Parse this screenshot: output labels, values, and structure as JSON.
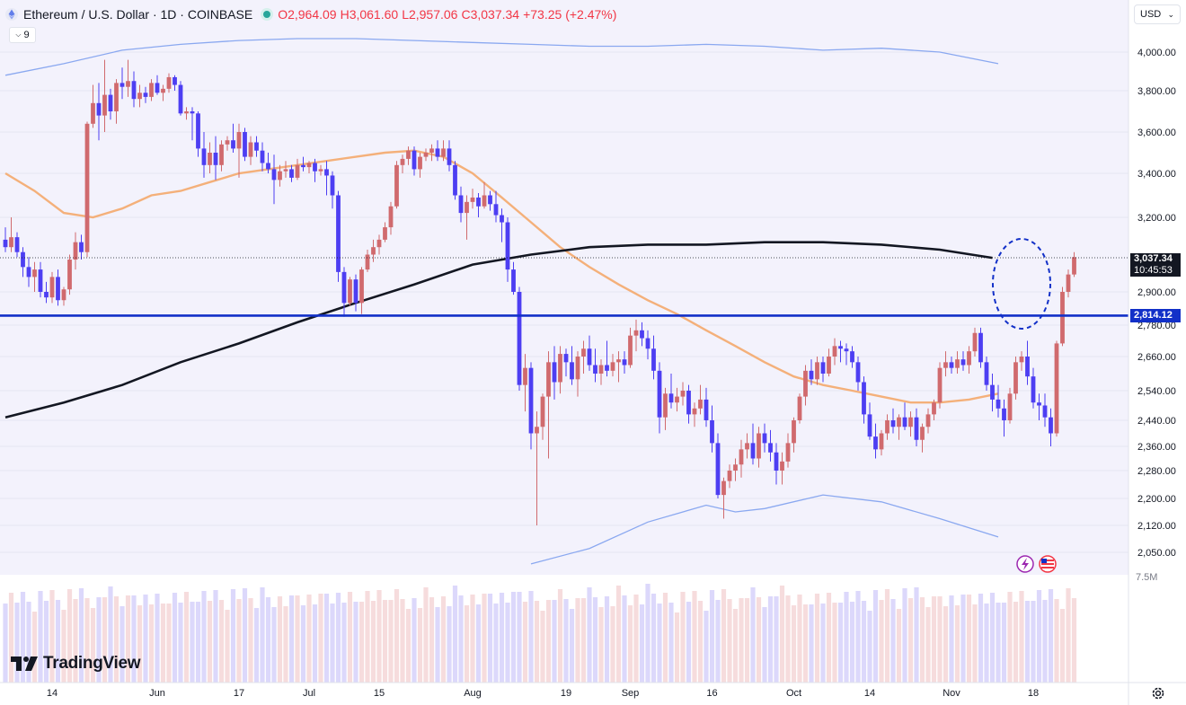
{
  "header": {
    "title": "Ethereum / U.S. Dollar · 1D · COINBASE",
    "open": "O2,964.09",
    "high": "H3,061.60",
    "low": "L2,957.06",
    "close": "C3,037.34",
    "change": "+73.25 (+2.47%)"
  },
  "indicator_count": "9",
  "currency": "USD",
  "brand": "TradingView",
  "price_tag": {
    "value": "3,037.34",
    "countdown": "10:45:53"
  },
  "level_tag": {
    "value": "2,814.12"
  },
  "volume_label": "7.5M",
  "colors": {
    "up": "#d06a6e",
    "down": "#4d3ef2",
    "level": "#1230c8",
    "ma_short": "#f4b07a",
    "ma_long": "#131722",
    "band": "#8aa8f0"
  },
  "chart_data": {
    "type": "candlestick",
    "y_ticks": [
      4000,
      3800,
      3600,
      3400,
      3200,
      2900,
      2780,
      2660,
      2540,
      2440,
      2360,
      2280,
      2200,
      2120,
      2050
    ],
    "y_tick_labels": [
      "4,000.00",
      "3,800.00",
      "3,600.00",
      "3,400.00",
      "3,200.00",
      "2,900.00",
      "2,780.00",
      "2,660.00",
      "2,540.00",
      "2,440.00",
      "2,360.00",
      "2,280.00",
      "2,200.00",
      "2,120.00",
      "2,050.00"
    ],
    "x_tick_labels": [
      {
        "label": "14",
        "index": 8
      },
      {
        "label": "Jun",
        "index": 26
      },
      {
        "label": "17",
        "index": 40
      },
      {
        "label": "Jul",
        "index": 52
      },
      {
        "label": "15",
        "index": 64
      },
      {
        "label": "Aug",
        "index": 80
      },
      {
        "label": "19",
        "index": 96
      },
      {
        "label": "Sep",
        "index": 107
      },
      {
        "label": "16",
        "index": 121
      },
      {
        "label": "Oct",
        "index": 135
      },
      {
        "label": "14",
        "index": 148
      },
      {
        "label": "Nov",
        "index": 162
      },
      {
        "label": "18",
        "index": 176
      }
    ],
    "horizontal_level": 2814.12,
    "last_price": 3037.34,
    "candles": [
      [
        3110,
        3160,
        3060,
        3080
      ],
      [
        3080,
        3200,
        3060,
        3120
      ],
      [
        3120,
        3140,
        3040,
        3060
      ],
      [
        3060,
        3080,
        2960,
        3000
      ],
      [
        3000,
        3040,
        2920,
        2960
      ],
      [
        2960,
        3020,
        2900,
        2990
      ],
      [
        2990,
        3020,
        2880,
        2900
      ],
      [
        2900,
        2940,
        2860,
        2880
      ],
      [
        2880,
        2980,
        2860,
        2960
      ],
      [
        2960,
        2990,
        2850,
        2870
      ],
      [
        2870,
        2920,
        2850,
        2910
      ],
      [
        2910,
        3050,
        2890,
        3030
      ],
      [
        3030,
        3140,
        2990,
        3100
      ],
      [
        3100,
        3130,
        3030,
        3060
      ],
      [
        3060,
        3650,
        3040,
        3640
      ],
      [
        3640,
        3830,
        3620,
        3740
      ],
      [
        3740,
        3840,
        3560,
        3680
      ],
      [
        3680,
        3960,
        3600,
        3780
      ],
      [
        3780,
        3810,
        3660,
        3700
      ],
      [
        3700,
        3860,
        3640,
        3840
      ],
      [
        3840,
        3920,
        3760,
        3820
      ],
      [
        3820,
        3960,
        3770,
        3850
      ],
      [
        3850,
        3900,
        3720,
        3760
      ],
      [
        3760,
        3830,
        3720,
        3790
      ],
      [
        3790,
        3820,
        3740,
        3770
      ],
      [
        3770,
        3860,
        3750,
        3840
      ],
      [
        3840,
        3880,
        3780,
        3790
      ],
      [
        3790,
        3830,
        3750,
        3810
      ],
      [
        3810,
        3890,
        3790,
        3870
      ],
      [
        3870,
        3880,
        3800,
        3830
      ],
      [
        3830,
        3850,
        3680,
        3690
      ],
      [
        3690,
        3720,
        3660,
        3700
      ],
      [
        3700,
        3720,
        3560,
        3690
      ],
      [
        3690,
        3700,
        3480,
        3520
      ],
      [
        3520,
        3600,
        3380,
        3440
      ],
      [
        3440,
        3550,
        3400,
        3500
      ],
      [
        3500,
        3580,
        3370,
        3440
      ],
      [
        3440,
        3560,
        3410,
        3540
      ],
      [
        3540,
        3580,
        3510,
        3560
      ],
      [
        3560,
        3640,
        3500,
        3520
      ],
      [
        3520,
        3640,
        3380,
        3600
      ],
      [
        3600,
        3620,
        3460,
        3480
      ],
      [
        3480,
        3580,
        3440,
        3550
      ],
      [
        3550,
        3580,
        3480,
        3510
      ],
      [
        3510,
        3550,
        3410,
        3450
      ],
      [
        3450,
        3500,
        3400,
        3420
      ],
      [
        3420,
        3490,
        3260,
        3370
      ],
      [
        3370,
        3440,
        3340,
        3410
      ],
      [
        3410,
        3460,
        3380,
        3420
      ],
      [
        3420,
        3440,
        3360,
        3380
      ],
      [
        3380,
        3470,
        3370,
        3440
      ],
      [
        3440,
        3480,
        3410,
        3430
      ],
      [
        3430,
        3460,
        3400,
        3450
      ],
      [
        3450,
        3470,
        3360,
        3410
      ],
      [
        3410,
        3440,
        3390,
        3420
      ],
      [
        3420,
        3460,
        3300,
        3390
      ],
      [
        3390,
        3410,
        3240,
        3300
      ],
      [
        3300,
        3320,
        2940,
        2980
      ],
      [
        2980,
        3000,
        2810,
        2860
      ],
      [
        2860,
        2960,
        2850,
        2950
      ],
      [
        2950,
        2970,
        2830,
        2860
      ],
      [
        2860,
        3000,
        2820,
        2990
      ],
      [
        2990,
        3070,
        2980,
        3050
      ],
      [
        3050,
        3110,
        3020,
        3080
      ],
      [
        3080,
        3130,
        3050,
        3110
      ],
      [
        3110,
        3180,
        3100,
        3160
      ],
      [
        3160,
        3270,
        3130,
        3250
      ],
      [
        3250,
        3460,
        3240,
        3440
      ],
      [
        3440,
        3490,
        3400,
        3470
      ],
      [
        3470,
        3530,
        3440,
        3510
      ],
      [
        3510,
        3530,
        3390,
        3420
      ],
      [
        3420,
        3500,
        3380,
        3480
      ],
      [
        3480,
        3520,
        3460,
        3500
      ],
      [
        3500,
        3540,
        3460,
        3520
      ],
      [
        3520,
        3560,
        3460,
        3480
      ],
      [
        3480,
        3560,
        3460,
        3520
      ],
      [
        3520,
        3560,
        3410,
        3440
      ],
      [
        3440,
        3460,
        3280,
        3300
      ],
      [
        3300,
        3340,
        3180,
        3220
      ],
      [
        3220,
        3300,
        3110,
        3270
      ],
      [
        3270,
        3330,
        3240,
        3290
      ],
      [
        3290,
        3310,
        3200,
        3250
      ],
      [
        3250,
        3360,
        3240,
        3300
      ],
      [
        3300,
        3320,
        3230,
        3260
      ],
      [
        3260,
        3320,
        3180,
        3210
      ],
      [
        3210,
        3240,
        3100,
        3180
      ],
      [
        3180,
        3200,
        2940,
        2990
      ],
      [
        2990,
        3020,
        2890,
        2900
      ],
      [
        2900,
        2920,
        2540,
        2560
      ],
      [
        2560,
        2670,
        2470,
        2620
      ],
      [
        2620,
        2640,
        2350,
        2400
      ],
      [
        2400,
        2470,
        2120,
        2420
      ],
      [
        2420,
        2530,
        2380,
        2520
      ],
      [
        2520,
        2680,
        2320,
        2640
      ],
      [
        2640,
        2700,
        2510,
        2570
      ],
      [
        2570,
        2700,
        2530,
        2670
      ],
      [
        2670,
        2690,
        2590,
        2640
      ],
      [
        2640,
        2700,
        2560,
        2580
      ],
      [
        2580,
        2680,
        2520,
        2660
      ],
      [
        2660,
        2720,
        2600,
        2690
      ],
      [
        2690,
        2740,
        2610,
        2630
      ],
      [
        2630,
        2690,
        2570,
        2600
      ],
      [
        2600,
        2650,
        2560,
        2630
      ],
      [
        2630,
        2720,
        2590,
        2610
      ],
      [
        2610,
        2670,
        2590,
        2640
      ],
      [
        2640,
        2680,
        2570,
        2650
      ],
      [
        2650,
        2680,
        2600,
        2630
      ],
      [
        2630,
        2770,
        2620,
        2740
      ],
      [
        2740,
        2800,
        2680,
        2760
      ],
      [
        2760,
        2790,
        2700,
        2730
      ],
      [
        2730,
        2760,
        2650,
        2690
      ],
      [
        2690,
        2740,
        2580,
        2610
      ],
      [
        2610,
        2640,
        2400,
        2450
      ],
      [
        2450,
        2550,
        2410,
        2530
      ],
      [
        2530,
        2600,
        2480,
        2500
      ],
      [
        2500,
        2550,
        2470,
        2520
      ],
      [
        2520,
        2570,
        2490,
        2540
      ],
      [
        2540,
        2560,
        2430,
        2460
      ],
      [
        2460,
        2500,
        2420,
        2480
      ],
      [
        2480,
        2560,
        2460,
        2510
      ],
      [
        2510,
        2550,
        2420,
        2440
      ],
      [
        2440,
        2490,
        2340,
        2370
      ],
      [
        2370,
        2400,
        2200,
        2210
      ],
      [
        2210,
        2260,
        2140,
        2250
      ],
      [
        2250,
        2300,
        2230,
        2280
      ],
      [
        2280,
        2320,
        2250,
        2300
      ],
      [
        2300,
        2380,
        2260,
        2350
      ],
      [
        2350,
        2400,
        2320,
        2370
      ],
      [
        2370,
        2430,
        2300,
        2320
      ],
      [
        2320,
        2420,
        2290,
        2400
      ],
      [
        2400,
        2430,
        2340,
        2370
      ],
      [
        2370,
        2410,
        2310,
        2340
      ],
      [
        2340,
        2370,
        2240,
        2280
      ],
      [
        2280,
        2340,
        2240,
        2310
      ],
      [
        2310,
        2400,
        2290,
        2370
      ],
      [
        2370,
        2450,
        2340,
        2440
      ],
      [
        2440,
        2530,
        2430,
        2520
      ],
      [
        2520,
        2630,
        2490,
        2610
      ],
      [
        2610,
        2650,
        2560,
        2580
      ],
      [
        2580,
        2660,
        2560,
        2640
      ],
      [
        2640,
        2660,
        2570,
        2600
      ],
      [
        2600,
        2690,
        2590,
        2660
      ],
      [
        2660,
        2730,
        2630,
        2700
      ],
      [
        2700,
        2720,
        2640,
        2690
      ],
      [
        2690,
        2710,
        2630,
        2680
      ],
      [
        2680,
        2700,
        2620,
        2640
      ],
      [
        2640,
        2660,
        2540,
        2570
      ],
      [
        2570,
        2590,
        2430,
        2460
      ],
      [
        2460,
        2500,
        2380,
        2390
      ],
      [
        2390,
        2430,
        2320,
        2350
      ],
      [
        2350,
        2410,
        2330,
        2400
      ],
      [
        2400,
        2460,
        2380,
        2440
      ],
      [
        2440,
        2480,
        2400,
        2420
      ],
      [
        2420,
        2460,
        2380,
        2450
      ],
      [
        2450,
        2500,
        2410,
        2420
      ],
      [
        2420,
        2470,
        2390,
        2450
      ],
      [
        2450,
        2480,
        2360,
        2380
      ],
      [
        2380,
        2430,
        2340,
        2420
      ],
      [
        2420,
        2480,
        2400,
        2460
      ],
      [
        2460,
        2510,
        2440,
        2500
      ],
      [
        2500,
        2640,
        2480,
        2620
      ],
      [
        2620,
        2680,
        2590,
        2640
      ],
      [
        2640,
        2660,
        2600,
        2620
      ],
      [
        2620,
        2680,
        2600,
        2650
      ],
      [
        2650,
        2680,
        2610,
        2630
      ],
      [
        2630,
        2700,
        2600,
        2680
      ],
      [
        2680,
        2770,
        2660,
        2750
      ],
      [
        2750,
        2770,
        2620,
        2640
      ],
      [
        2640,
        2660,
        2540,
        2560
      ],
      [
        2560,
        2600,
        2470,
        2510
      ],
      [
        2510,
        2560,
        2450,
        2480
      ],
      [
        2480,
        2510,
        2390,
        2440
      ],
      [
        2440,
        2550,
        2430,
        2530
      ],
      [
        2530,
        2660,
        2510,
        2640
      ],
      [
        2640,
        2680,
        2610,
        2660
      ],
      [
        2660,
        2720,
        2560,
        2590
      ],
      [
        2590,
        2620,
        2480,
        2500
      ],
      [
        2500,
        2530,
        2440,
        2490
      ],
      [
        2490,
        2530,
        2420,
        2450
      ],
      [
        2450,
        2480,
        2360,
        2400
      ],
      [
        2400,
        2720,
        2390,
        2710
      ],
      [
        2710,
        2920,
        2700,
        2900
      ],
      [
        2900,
        2990,
        2880,
        2970
      ],
      [
        2970,
        3060,
        2960,
        3040
      ]
    ],
    "ma_short": [
      [
        0,
        3400
      ],
      [
        5,
        3320
      ],
      [
        10,
        3220
      ],
      [
        15,
        3200
      ],
      [
        20,
        3240
      ],
      [
        25,
        3300
      ],
      [
        30,
        3320
      ],
      [
        35,
        3360
      ],
      [
        40,
        3400
      ],
      [
        45,
        3420
      ],
      [
        50,
        3440
      ],
      [
        55,
        3460
      ],
      [
        60,
        3480
      ],
      [
        65,
        3500
      ],
      [
        70,
        3510
      ],
      [
        75,
        3480
      ],
      [
        80,
        3400
      ],
      [
        85,
        3290
      ],
      [
        90,
        3180
      ],
      [
        95,
        3080
      ],
      [
        100,
        3000
      ],
      [
        105,
        2930
      ],
      [
        110,
        2870
      ],
      [
        115,
        2820
      ],
      [
        120,
        2760
      ],
      [
        125,
        2700
      ],
      [
        130,
        2640
      ],
      [
        135,
        2590
      ],
      [
        140,
        2560
      ],
      [
        145,
        2540
      ],
      [
        150,
        2520
      ],
      [
        155,
        2500
      ],
      [
        160,
        2500
      ],
      [
        165,
        2510
      ],
      [
        170,
        2530
      ]
    ],
    "ma_long": [
      [
        0,
        2450
      ],
      [
        10,
        2500
      ],
      [
        20,
        2560
      ],
      [
        30,
        2640
      ],
      [
        40,
        2710
      ],
      [
        50,
        2790
      ],
      [
        60,
        2860
      ],
      [
        70,
        2930
      ],
      [
        80,
        3010
      ],
      [
        90,
        3050
      ],
      [
        100,
        3080
      ],
      [
        110,
        3090
      ],
      [
        120,
        3090
      ],
      [
        130,
        3100
      ],
      [
        140,
        3100
      ],
      [
        150,
        3090
      ],
      [
        160,
        3070
      ],
      [
        169,
        3037
      ]
    ],
    "band_upper": [
      [
        0,
        3880
      ],
      [
        10,
        3940
      ],
      [
        20,
        4010
      ],
      [
        30,
        4040
      ],
      [
        40,
        4060
      ],
      [
        50,
        4070
      ],
      [
        60,
        4070
      ],
      [
        70,
        4060
      ],
      [
        80,
        4050
      ],
      [
        90,
        4040
      ],
      [
        100,
        4030
      ],
      [
        110,
        4030
      ],
      [
        120,
        4040
      ],
      [
        130,
        4030
      ],
      [
        140,
        4010
      ],
      [
        150,
        4020
      ],
      [
        160,
        4000
      ],
      [
        170,
        3940
      ]
    ],
    "band_lower": [
      [
        90,
        2020
      ],
      [
        100,
        2060
      ],
      [
        110,
        2130
      ],
      [
        120,
        2180
      ],
      [
        125,
        2160
      ],
      [
        130,
        2170
      ],
      [
        140,
        2210
      ],
      [
        150,
        2190
      ],
      [
        160,
        2140
      ],
      [
        170,
        2090
      ]
    ]
  }
}
